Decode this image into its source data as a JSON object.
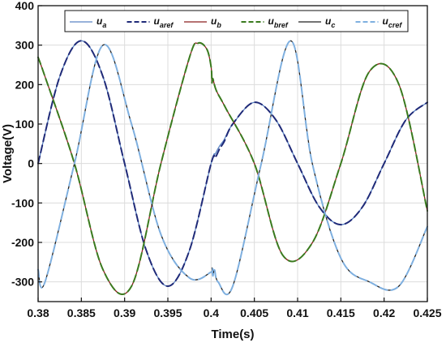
{
  "chart_data": {
    "type": "line",
    "title": "",
    "xlabel": "Time(s)",
    "ylabel": "Voltage(V)",
    "xlim": [
      0.38,
      0.425
    ],
    "ylim": [
      -350,
      400
    ],
    "x_ticks": [
      0.38,
      0.385,
      0.39,
      0.395,
      0.4,
      0.405,
      0.41,
      0.415,
      0.42,
      0.425
    ],
    "x_tick_labels": [
      "0.38",
      "0.385",
      "0.39",
      "0.395",
      "0.4",
      "0.405",
      "0.41",
      "0.415",
      "0.42",
      "0.425"
    ],
    "y_ticks": [
      -300,
      -200,
      -100,
      0,
      100,
      200,
      300,
      400
    ],
    "y_tick_labels": [
      "-300",
      "-200",
      "-100",
      "0",
      "100",
      "200",
      "300",
      "400"
    ],
    "grid": true,
    "legend_position": "top",
    "legend_columns": 6,
    "series": [
      {
        "name": "u_a",
        "label_main": "u",
        "label_sub": "a",
        "color": "#5b84c4",
        "style": "solid",
        "x": [
          0.38,
          0.3825,
          0.385,
          0.3875,
          0.39,
          0.3925,
          0.395,
          0.3975,
          0.4,
          0.4005,
          0.401,
          0.4015,
          0.4025,
          0.405,
          0.4075,
          0.41,
          0.4125,
          0.415,
          0.4175,
          0.42,
          0.4225,
          0.425
        ],
        "y": [
          0,
          220,
          311,
          220,
          0,
          -220,
          -311,
          -220,
          0,
          25,
          45,
          60,
          100,
          155,
          110,
          0,
          -110,
          -155,
          -110,
          0,
          110,
          155
        ]
      },
      {
        "name": "u_aref",
        "label_main": "u",
        "label_sub": "aref",
        "color": "#1f2a78",
        "style": "dashed",
        "x": [
          0.38,
          0.3825,
          0.385,
          0.3875,
          0.39,
          0.3925,
          0.395,
          0.3975,
          0.4,
          0.4005,
          0.401,
          0.4015,
          0.4025,
          0.405,
          0.4075,
          0.41,
          0.4125,
          0.415,
          0.4175,
          0.42,
          0.4225,
          0.425
        ],
        "y": [
          0,
          220,
          311,
          220,
          0,
          -220,
          -311,
          -220,
          0,
          15,
          38,
          55,
          100,
          155,
          110,
          0,
          -110,
          -155,
          -110,
          0,
          110,
          155
        ]
      },
      {
        "name": "u_b",
        "label_main": "u",
        "label_sub": "b",
        "color": "#8b1f1f",
        "style": "solid",
        "x": [
          0.38,
          0.3808,
          0.3842,
          0.3875,
          0.3908,
          0.3942,
          0.3975,
          0.3985,
          0.3995,
          0.4,
          0.4001,
          0.4002,
          0.4006,
          0.4017,
          0.405,
          0.4083,
          0.4117,
          0.415,
          0.4183,
          0.4217,
          0.425
        ],
        "y": [
          269,
          220,
          0,
          -269,
          -311,
          0,
          269,
          305,
          290,
          245,
          205,
          215,
          185,
          140,
          0,
          -233,
          -201,
          0,
          233,
          201,
          -120
        ]
      },
      {
        "name": "u_bref",
        "label_main": "u",
        "label_sub": "bref",
        "color": "#3a7a1e",
        "style": "dashed",
        "x": [
          0.38,
          0.3808,
          0.3842,
          0.3875,
          0.3908,
          0.3942,
          0.3975,
          0.3985,
          0.3995,
          0.4,
          0.4001,
          0.4002,
          0.4006,
          0.4017,
          0.405,
          0.4083,
          0.4117,
          0.415,
          0.4183,
          0.4217,
          0.425
        ],
        "y": [
          269,
          220,
          0,
          -269,
          -311,
          0,
          269,
          305,
          290,
          245,
          205,
          215,
          185,
          140,
          0,
          -233,
          -201,
          0,
          233,
          201,
          -120
        ]
      },
      {
        "name": "u_c",
        "label_main": "u",
        "label_sub": "c",
        "color": "#222222",
        "style": "solid",
        "x": [
          0.38,
          0.3808,
          0.3842,
          0.3875,
          0.3908,
          0.3942,
          0.3975,
          0.4,
          0.4001,
          0.4002,
          0.4004,
          0.4008,
          0.4025,
          0.4058,
          0.4092,
          0.4117,
          0.415,
          0.4183,
          0.4217,
          0.425
        ],
        "y": [
          -269,
          -300,
          0,
          300,
          100,
          -180,
          -290,
          -275,
          -265,
          -285,
          -270,
          -300,
          -311,
          0,
          311,
          0,
          -240,
          -300,
          -311,
          -160
        ]
      },
      {
        "name": "u_cref",
        "label_main": "u",
        "label_sub": "cref",
        "color": "#7fb0e0",
        "style": "dashed",
        "x": [
          0.38,
          0.3808,
          0.3842,
          0.3875,
          0.3908,
          0.3942,
          0.3975,
          0.4,
          0.4001,
          0.4002,
          0.4004,
          0.4008,
          0.4025,
          0.4058,
          0.4092,
          0.4117,
          0.415,
          0.4183,
          0.4217,
          0.425
        ],
        "y": [
          -269,
          -300,
          0,
          300,
          100,
          -180,
          -290,
          -275,
          -265,
          -285,
          -270,
          -300,
          -311,
          0,
          311,
          0,
          -240,
          -300,
          -311,
          -160
        ]
      }
    ]
  }
}
